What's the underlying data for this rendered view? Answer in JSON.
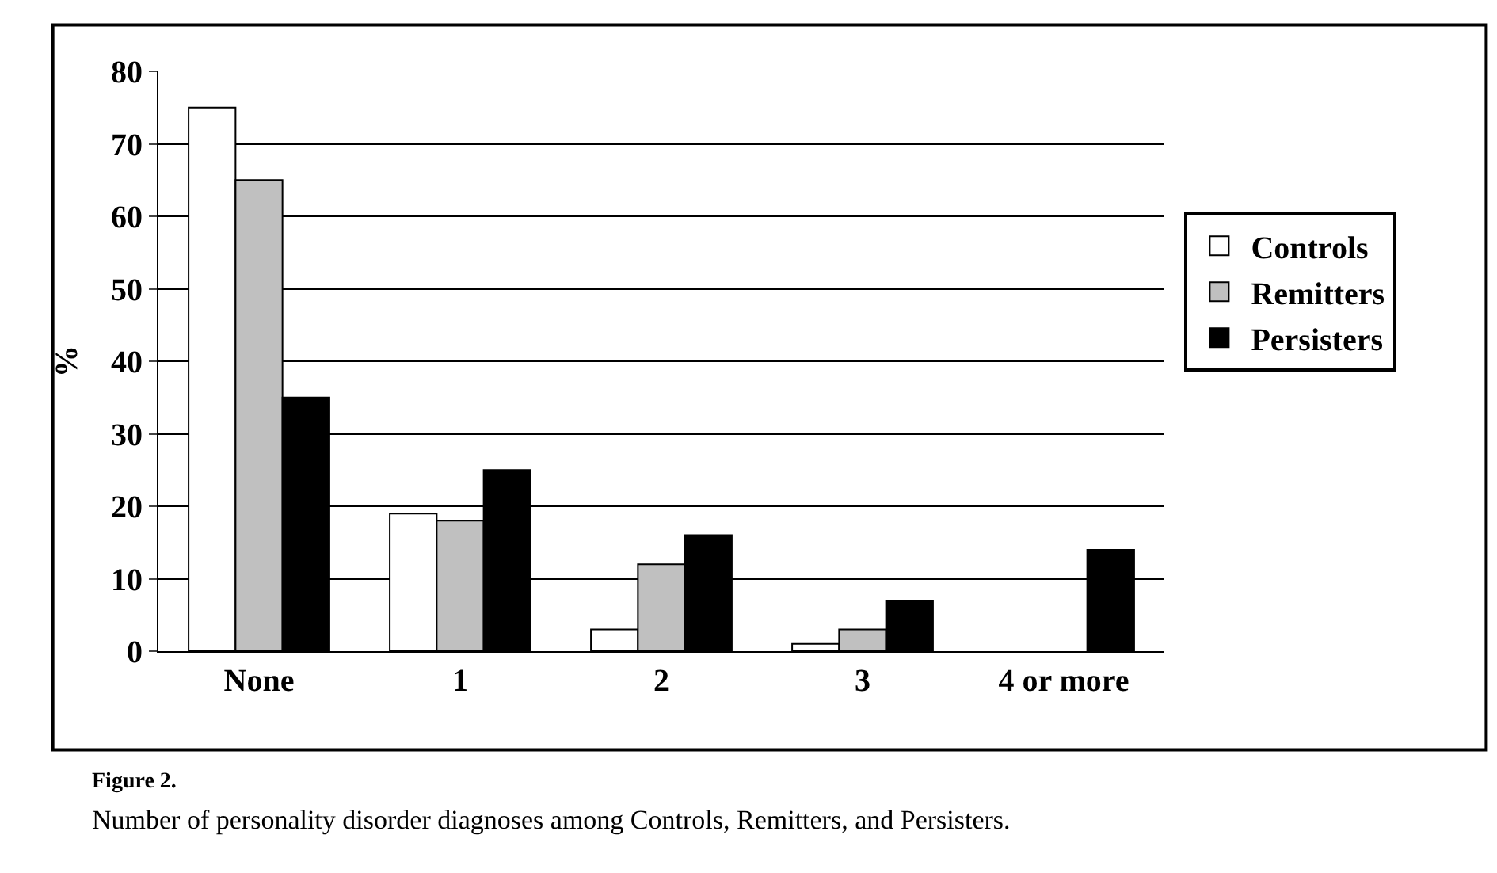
{
  "chart_data": {
    "type": "bar",
    "ylabel": "%",
    "categories": [
      "None",
      "1",
      "2",
      "3",
      "4 or more"
    ],
    "series": [
      {
        "name": "Controls",
        "color": "#ffffff",
        "values": [
          75,
          19,
          3,
          1,
          0
        ]
      },
      {
        "name": "Remitters",
        "color": "#c0c0c0",
        "values": [
          65,
          18,
          12,
          3,
          0
        ]
      },
      {
        "name": "Persisters",
        "color": "#000000",
        "values": [
          35,
          25,
          16,
          7,
          14
        ]
      }
    ],
    "ylim": [
      0,
      80
    ],
    "yticks": [
      0,
      10,
      20,
      30,
      40,
      50,
      60,
      70,
      80
    ],
    "grid": "y",
    "legend": "right",
    "annotations": [
      "Figure 2.",
      "Number of personality disorder diagnoses among Controls, Remitters, and Persisters."
    ]
  }
}
